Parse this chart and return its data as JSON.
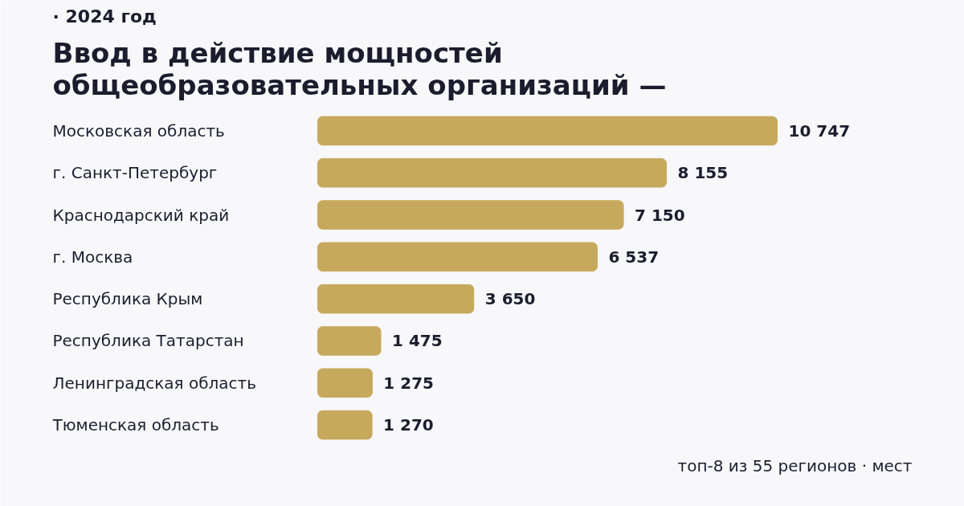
{
  "chart_data": {
    "type": "bar",
    "orientation": "horizontal",
    "subtitle": "· 2024 год",
    "title": "Ввод в действие мощностей\nобщеобразовательных организаций —",
    "categories": [
      "Московская область",
      "г. Санкт-Петербург",
      "Краснодарский край",
      "г. Москва",
      "Республика Крым",
      "Республика Татарстан",
      "Ленинградская область",
      "Тюменская область"
    ],
    "values": [
      10747,
      8155,
      7150,
      6537,
      3650,
      1475,
      1275,
      1270
    ],
    "value_labels": [
      "10 747",
      "8 155",
      "7 150",
      "6 537",
      "3 650",
      "1 475",
      "1 275",
      "1 270"
    ],
    "color": "#c6a95c",
    "annotations": [
      "топ-8 из 55 регионов · мест"
    ]
  }
}
